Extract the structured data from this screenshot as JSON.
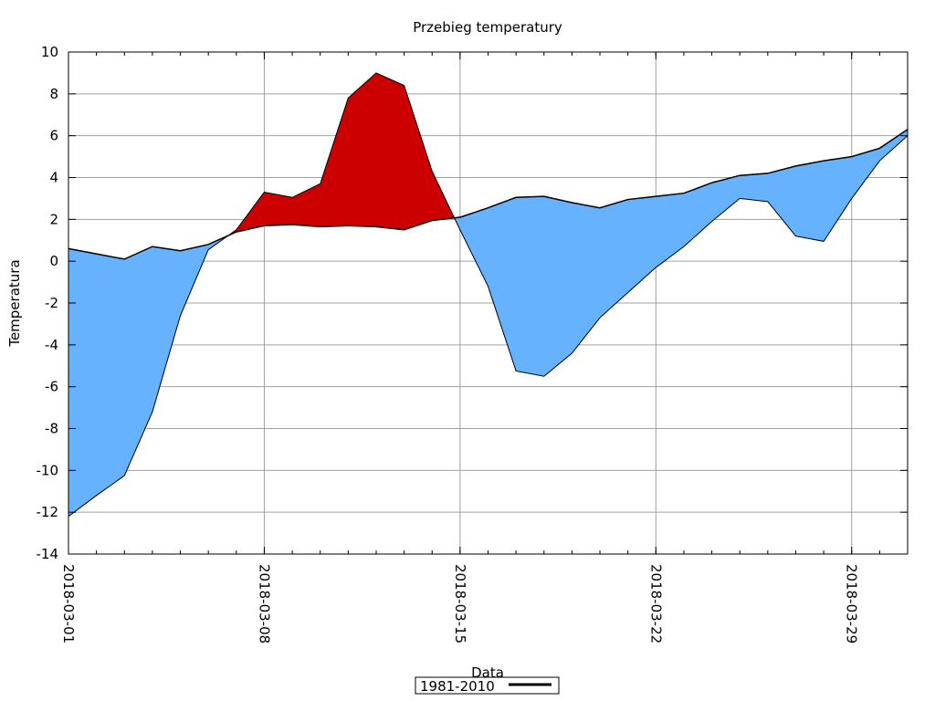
{
  "chart_data": {
    "type": "area",
    "title": "Przebieg temperatury",
    "xlabel": "Data",
    "ylabel": "Temperatura",
    "ylim": [
      -14,
      10
    ],
    "yticks": [
      10,
      8,
      6,
      4,
      2,
      0,
      -2,
      -4,
      -6,
      -8,
      -10,
      -12,
      -14
    ],
    "xlim": [
      "2018-03-01",
      "2018-03-31"
    ],
    "xticks": [
      "2018-03-01",
      "2018-03-08",
      "2018-03-15",
      "2018-03-22",
      "2018-03-29"
    ],
    "grid": true,
    "legend_position": "bottom",
    "fill_colors": {
      "above_normal": "#cc0000",
      "below_normal": "#66b2ff"
    },
    "x": [
      "2018-03-01",
      "2018-03-02",
      "2018-03-03",
      "2018-03-04",
      "2018-03-05",
      "2018-03-06",
      "2018-03-07",
      "2018-03-08",
      "2018-03-09",
      "2018-03-10",
      "2018-03-11",
      "2018-03-12",
      "2018-03-13",
      "2018-03-14",
      "2018-03-15",
      "2018-03-16",
      "2018-03-17",
      "2018-03-18",
      "2018-03-19",
      "2018-03-20",
      "2018-03-21",
      "2018-03-22",
      "2018-03-23",
      "2018-03-24",
      "2018-03-25",
      "2018-03-26",
      "2018-03-27",
      "2018-03-28",
      "2018-03-29",
      "2018-03-30",
      "2018-03-31"
    ],
    "series": [
      {
        "name": "1981-2010",
        "color": "#000000",
        "values": [
          0.6,
          0.35,
          0.1,
          0.7,
          0.5,
          0.8,
          1.4,
          1.7,
          1.75,
          1.65,
          1.7,
          1.65,
          1.5,
          1.95,
          2.1,
          2.55,
          3.05,
          3.1,
          2.8,
          2.55,
          2.95,
          3.1,
          3.25,
          3.75,
          4.1,
          4.2,
          4.55,
          4.8,
          5.0,
          5.4,
          6.3
        ]
      },
      {
        "color": "#000000",
        "values": [
          -12.2,
          -11.2,
          -10.25,
          -7.2,
          -2.6,
          0.55,
          1.5,
          3.3,
          3.05,
          3.7,
          7.8,
          9.0,
          8.4,
          4.3,
          1.5,
          -1.2,
          -5.25,
          -5.5,
          -4.4,
          -2.7,
          -1.5,
          -0.3,
          0.7,
          1.9,
          3.0,
          2.85,
          1.2,
          0.95,
          3.0,
          4.8,
          6.0
        ]
      }
    ]
  }
}
